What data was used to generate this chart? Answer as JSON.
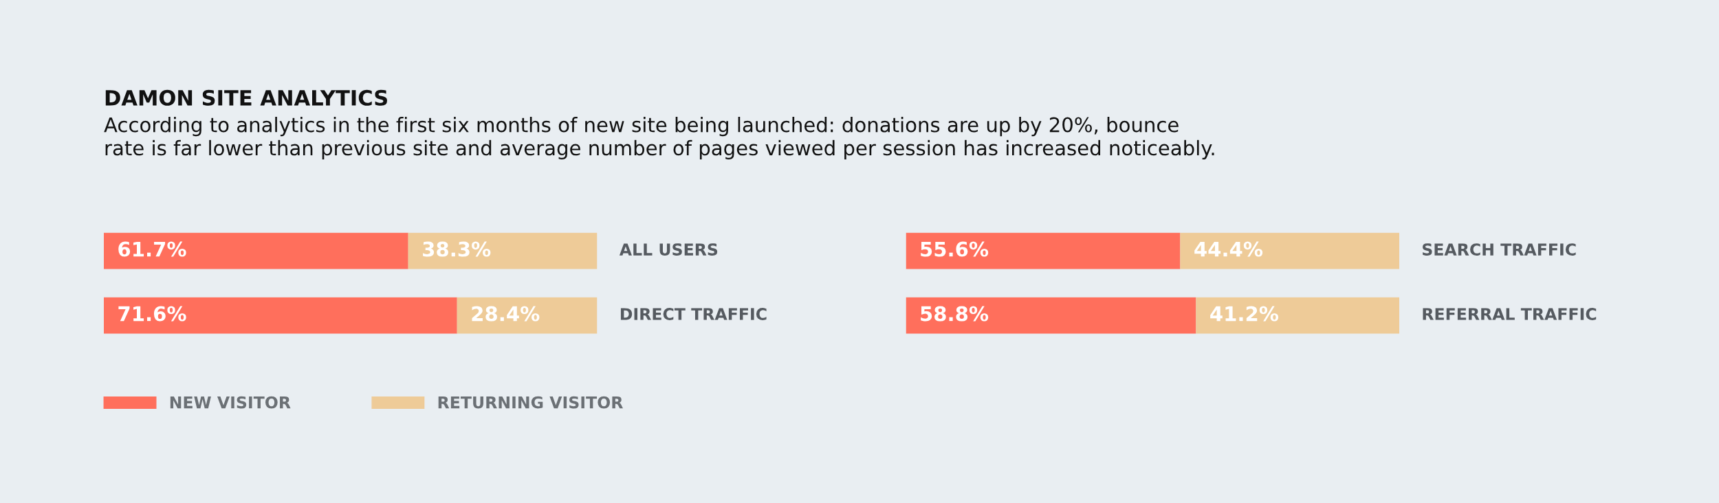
{
  "chart_data": [
    {
      "type": "bar",
      "orientation": "horizontal",
      "stacked": true,
      "title": "DAMON SITE ANALYTICS",
      "subtitle": "According to analytics in the first six months of new site being launched: donations are up by 20%, bounce\nrate is far lower than previous site and average number of pages viewed per session has increased noticeably.",
      "categories": [
        "ALL USERS",
        "DIRECT TRAFFIC"
      ],
      "legend": "bottom",
      "series": [
        {
          "name": "NEW VISITOR",
          "color": "#ff6f5c",
          "values": [
            61.7,
            71.6
          ],
          "value_labels": [
            "61.7%",
            "71.6%"
          ]
        },
        {
          "name": "RETURNING VISITOR",
          "color": "#eecb98",
          "values": [
            38.3,
            28.4
          ],
          "value_labels": [
            "38.3%",
            "28.4%"
          ]
        }
      ]
    },
    {
      "type": "bar",
      "orientation": "horizontal",
      "stacked": true,
      "categories": [
        "SEARCH TRAFFIC",
        "REFERRAL TRAFFIC"
      ],
      "series": [
        {
          "color": "#ff6f5c",
          "values": [
            55.6,
            58.8
          ],
          "value_labels": [
            "55.6%",
            "58.8%"
          ]
        },
        {
          "color": "#eecb98",
          "values": [
            44.4,
            41.2
          ],
          "value_labels": [
            "44.4%",
            "41.2%"
          ]
        }
      ]
    }
  ]
}
